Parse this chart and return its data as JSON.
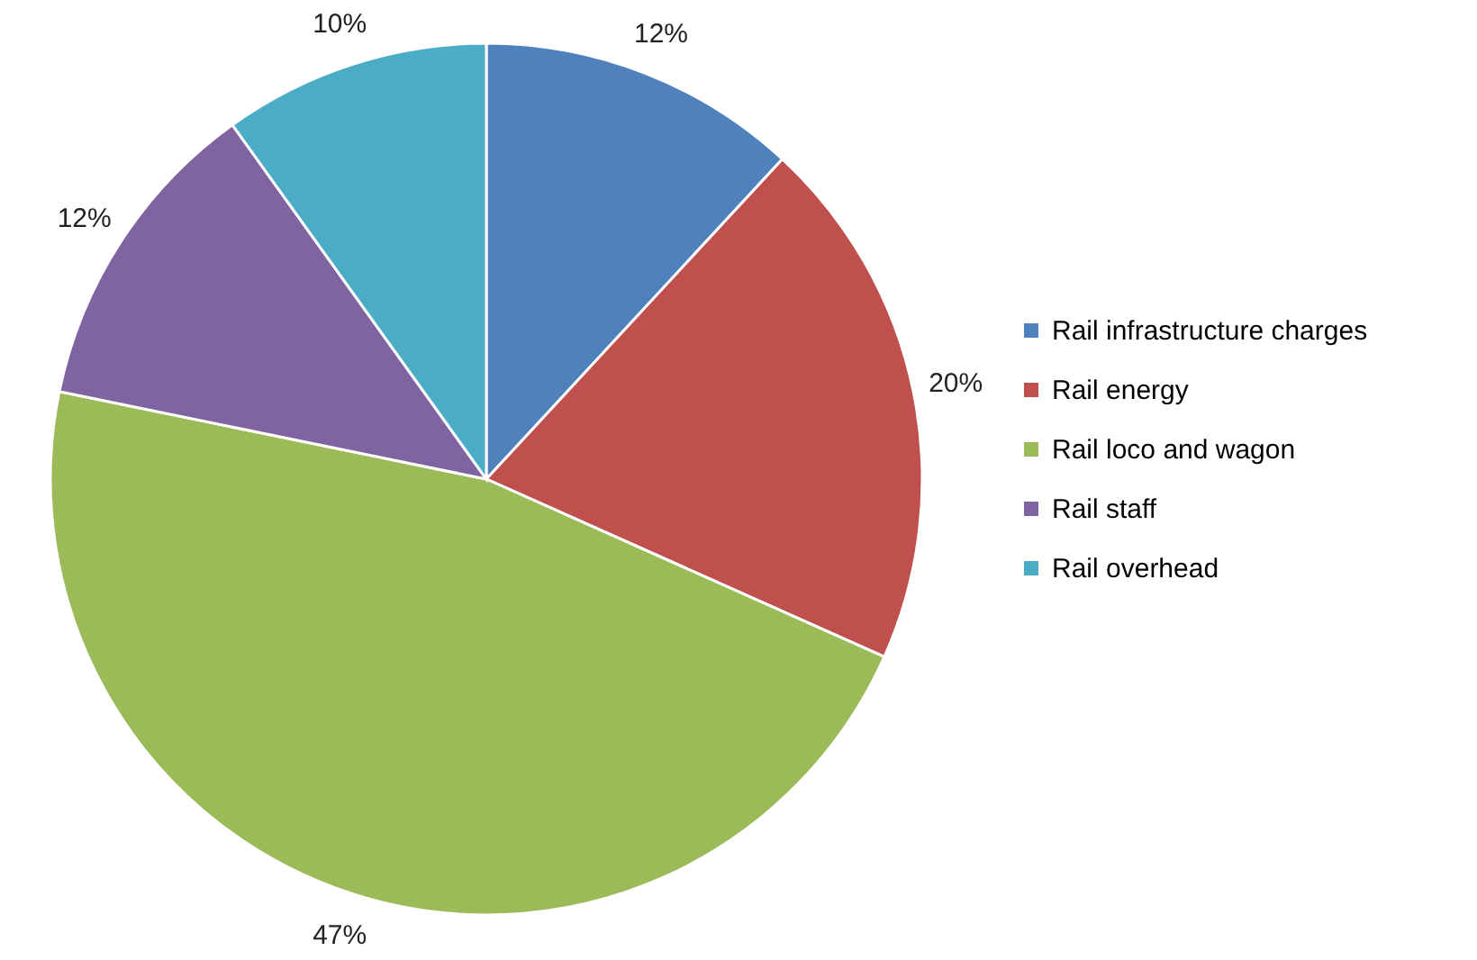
{
  "chart_data": {
    "type": "pie",
    "categories": [
      "Rail infrastructure charges",
      "Rail energy",
      "Rail loco and wagon",
      "Rail staff",
      "Rail overhead"
    ],
    "values": [
      12,
      20,
      47,
      12,
      10
    ],
    "colors": [
      "#4f81bd",
      "#c0504d",
      "#9bbb59",
      "#8064a2",
      "#4bacc6"
    ],
    "value_labels": [
      "12%",
      "20%",
      "47%",
      "12%",
      "10%"
    ],
    "legend": "right"
  }
}
